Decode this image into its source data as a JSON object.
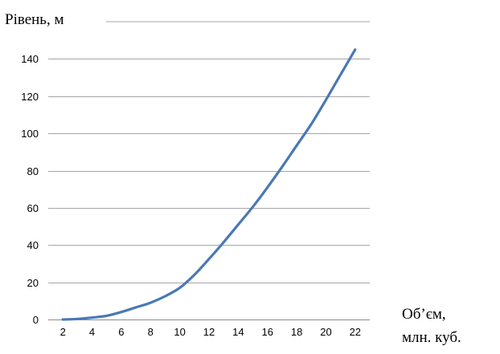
{
  "chart_data": {
    "type": "line",
    "title": "",
    "ylabel": "Рівень, м",
    "xlabel_line1": "Об’єм,",
    "xlabel_line2": "млн. куб.",
    "x_ticks": [
      2,
      4,
      6,
      8,
      10,
      12,
      14,
      16,
      18,
      20,
      22
    ],
    "y_ticks": [
      0,
      20,
      40,
      60,
      80,
      100,
      120,
      140
    ],
    "xlim": [
      1,
      23
    ],
    "ylim": [
      0,
      160
    ],
    "grid": "horizontal",
    "legend": "none",
    "series": [
      {
        "color": "#4a78b5",
        "x": [
          2,
          3,
          4,
          5,
          6,
          7,
          8,
          9,
          10,
          11,
          12,
          13,
          14,
          15,
          16,
          17,
          18,
          19,
          20,
          21,
          22
        ],
        "y": [
          0,
          0.3,
          1,
          2,
          4,
          6.5,
          9,
          12.5,
          17,
          24,
          32.5,
          41.5,
          51,
          60.5,
          71,
          82,
          93.5,
          105,
          118,
          131.5,
          145
        ]
      }
    ]
  }
}
